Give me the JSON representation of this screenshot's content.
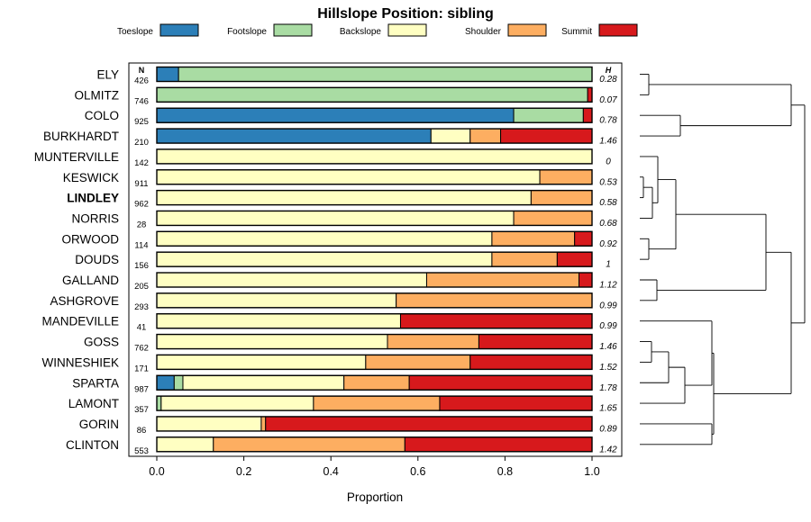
{
  "chart_data": {
    "type": "bar",
    "orientation": "horizontal",
    "stacked": true,
    "title": "Hillslope Position: sibling",
    "xlabel": "Proportion",
    "xlim": [
      0,
      1
    ],
    "xticks": [
      "0.0",
      "0.2",
      "0.4",
      "0.6",
      "0.8",
      "1.0"
    ],
    "n_header": "N",
    "h_header": "H",
    "legend_position": "top",
    "categories_legend": [
      {
        "name": "Toeslope",
        "color": "#2c7fb8"
      },
      {
        "name": "Footslope",
        "color": "#a9dca3"
      },
      {
        "name": "Backslope",
        "color": "#ffffc2"
      },
      {
        "name": "Shoulder",
        "color": "#fdae61"
      },
      {
        "name": "Summit",
        "color": "#d7191c"
      }
    ],
    "rows": [
      {
        "label": "ELY",
        "n": "426",
        "h": "0.28",
        "bold": false,
        "values": [
          0.05,
          0.95,
          0,
          0,
          0
        ]
      },
      {
        "label": "OLMITZ",
        "n": "746",
        "h": "0.07",
        "bold": false,
        "values": [
          0,
          0.99,
          0,
          0,
          0.01
        ]
      },
      {
        "label": "COLO",
        "n": "925",
        "h": "0.78",
        "bold": false,
        "values": [
          0.82,
          0.16,
          0,
          0,
          0.02
        ]
      },
      {
        "label": "BURKHARDT",
        "n": "210",
        "h": "1.46",
        "bold": false,
        "values": [
          0.63,
          0,
          0.09,
          0.07,
          0.21
        ]
      },
      {
        "label": "MUNTERVILLE",
        "n": "142",
        "h": "0",
        "bold": false,
        "values": [
          0,
          0,
          1.0,
          0,
          0
        ]
      },
      {
        "label": "KESWICK",
        "n": "911",
        "h": "0.53",
        "bold": false,
        "values": [
          0,
          0,
          0.88,
          0.12,
          0
        ]
      },
      {
        "label": "LINDLEY",
        "n": "962",
        "h": "0.58",
        "bold": true,
        "values": [
          0,
          0,
          0.86,
          0.14,
          0
        ]
      },
      {
        "label": "NORRIS",
        "n": "28",
        "h": "0.68",
        "bold": false,
        "values": [
          0,
          0,
          0.82,
          0.18,
          0
        ]
      },
      {
        "label": "ORWOOD",
        "n": "114",
        "h": "0.92",
        "bold": false,
        "values": [
          0,
          0,
          0.77,
          0.19,
          0.04
        ]
      },
      {
        "label": "DOUDS",
        "n": "156",
        "h": "1",
        "bold": false,
        "values": [
          0,
          0,
          0.77,
          0.15,
          0.08
        ]
      },
      {
        "label": "GALLAND",
        "n": "205",
        "h": "1.12",
        "bold": false,
        "values": [
          0,
          0,
          0.62,
          0.35,
          0.03
        ]
      },
      {
        "label": "ASHGROVE",
        "n": "293",
        "h": "0.99",
        "bold": false,
        "values": [
          0,
          0,
          0.55,
          0.45,
          0
        ]
      },
      {
        "label": "MANDEVILLE",
        "n": "41",
        "h": "0.99",
        "bold": false,
        "values": [
          0,
          0,
          0.56,
          0,
          0.44
        ]
      },
      {
        "label": "GOSS",
        "n": "762",
        "h": "1.46",
        "bold": false,
        "values": [
          0,
          0,
          0.53,
          0.21,
          0.26
        ]
      },
      {
        "label": "WINNESHIEK",
        "n": "171",
        "h": "1.52",
        "bold": false,
        "values": [
          0,
          0,
          0.48,
          0.24,
          0.28
        ]
      },
      {
        "label": "SPARTA",
        "n": "987",
        "h": "1.78",
        "bold": false,
        "values": [
          0.04,
          0.02,
          0.37,
          0.15,
          0.42
        ]
      },
      {
        "label": "LAMONT",
        "n": "357",
        "h": "1.65",
        "bold": false,
        "values": [
          0,
          0.01,
          0.35,
          0.29,
          0.35
        ]
      },
      {
        "label": "GORIN",
        "n": "86",
        "h": "0.89",
        "bold": false,
        "values": [
          0,
          0,
          0.24,
          0.01,
          0.75
        ]
      },
      {
        "label": "CLINTON",
        "n": "553",
        "h": "1.42",
        "bold": false,
        "values": [
          0,
          0,
          0.13,
          0.44,
          0.43
        ]
      }
    ]
  }
}
